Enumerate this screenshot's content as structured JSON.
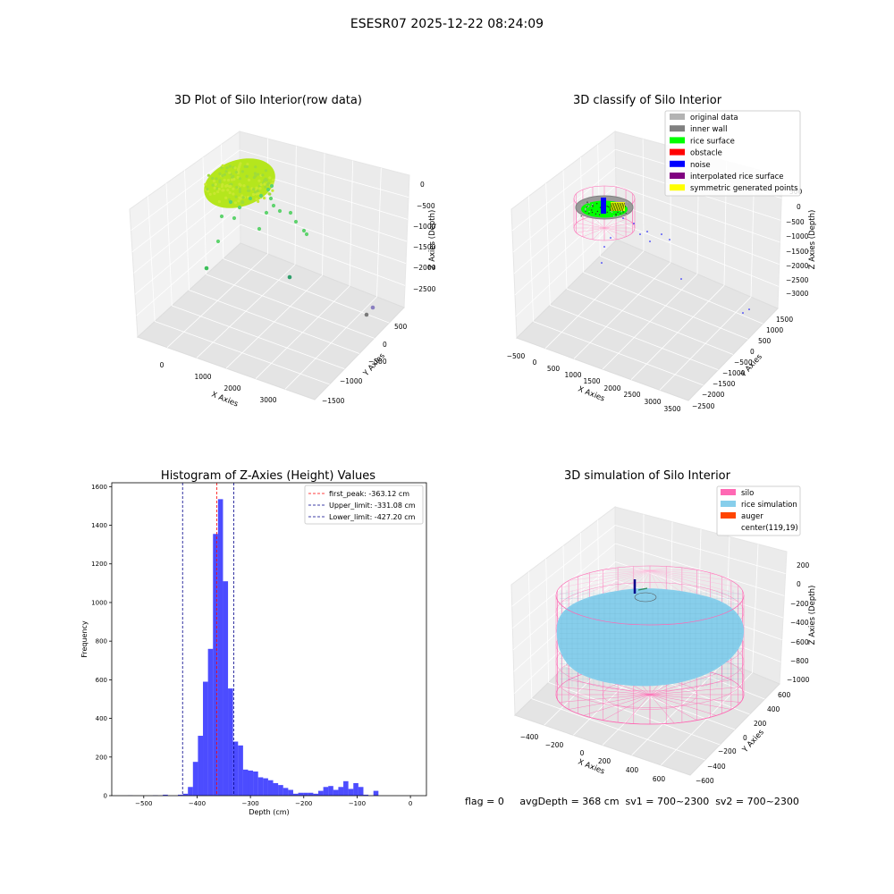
{
  "figure": {
    "suptitle": "ESESR07 2025-12-22 08:24:09"
  },
  "panel1": {
    "title": "3D Plot of Silo Interior(row data)",
    "xlabel": "X Axies",
    "ylabel": "Y Axies",
    "zlabel": "Z Axies (Depth)",
    "xticks": [
      "0",
      "1000",
      "2000",
      "3000"
    ],
    "yticks": [
      "500",
      "0",
      "−500",
      "−1000",
      "−1500"
    ],
    "zticks": [
      "0",
      "−500",
      "−1000",
      "−1500",
      "−2000",
      "−2500"
    ],
    "colors": {
      "surface": "#b5e61d",
      "points": "#5fd36e",
      "deep": "#2e9e6b",
      "far": "#7a7a7a"
    }
  },
  "panel2": {
    "title": "3D classify of Silo Interior",
    "xlabel": "X Axies",
    "ylabel": "Y Axies",
    "zlabel": "Z Axies (Depth)",
    "xticks": [
      "−500",
      "0",
      "500",
      "1000",
      "1500",
      "2000",
      "2500",
      "3000",
      "3500"
    ],
    "yticks": [
      "1500",
      "1000",
      "500",
      "0",
      "−500",
      "−1000",
      "−1500",
      "−2000",
      "−2500"
    ],
    "zticks": [
      "500",
      "0",
      "−500",
      "−1000",
      "−1500",
      "−2000",
      "−2500",
      "−3000"
    ],
    "legend": [
      {
        "label": "original data",
        "color": "#b3b3b3"
      },
      {
        "label": "inner wall",
        "color": "#808080"
      },
      {
        "label": "rice surface",
        "color": "#00ff00"
      },
      {
        "label": "obstacle",
        "color": "#ff0000"
      },
      {
        "label": "noise",
        "color": "#0000ff"
      },
      {
        "label": "interpolated rice surface",
        "color": "#800080"
      },
      {
        "label": "symmetric generated points",
        "color": "#ffff00"
      }
    ]
  },
  "panel4": {
    "title": "3D simulation of Silo Interior",
    "xlabel": "X Axies",
    "ylabel": "Y Axies",
    "zlabel": "Z Axies (Depth)",
    "xticks": [
      "−400",
      "−200",
      "0",
      "200",
      "400",
      "600"
    ],
    "yticks": [
      "600",
      "400",
      "200",
      "0",
      "−200",
      "−400",
      "−600"
    ],
    "zticks": [
      "200",
      "0",
      "−200",
      "−400",
      "−600",
      "−800",
      "−1000"
    ],
    "legend": [
      {
        "label": "silo",
        "color": "#ff69b4"
      },
      {
        "label": "rice simulation",
        "color": "#87ceeb"
      },
      {
        "label": "auger",
        "color": "#ff4500"
      },
      {
        "label": "center(119,19)",
        "color": ""
      }
    ],
    "status": "flag = 0     avgDepth = 368 cm  sv1 = 700~2300  sv2 = 700~2300"
  },
  "chart_data": [
    {
      "type": "scatter",
      "title": "3D Plot of Silo Interior(row data)",
      "xlabel": "X Axies",
      "ylabel": "Y Axies",
      "zlabel": "Z Axies (Depth)",
      "xlim": [
        -500,
        3700
      ],
      "ylim": [
        -1500,
        700
      ],
      "zlim": [
        -2800,
        100
      ],
      "grid": true
    },
    {
      "type": "scatter",
      "title": "3D classify of Silo Interior",
      "xlabel": "X Axies",
      "ylabel": "Y Axies",
      "zlabel": "Z Axies (Depth)",
      "xlim": [
        -500,
        3500
      ],
      "ylim": [
        -2500,
        1500
      ],
      "zlim": [
        -3000,
        500
      ],
      "series": [
        {
          "name": "original data"
        },
        {
          "name": "inner wall"
        },
        {
          "name": "rice surface"
        },
        {
          "name": "obstacle"
        },
        {
          "name": "noise"
        },
        {
          "name": "interpolated rice surface"
        },
        {
          "name": "symmetric generated points"
        }
      ],
      "legend": "top-right",
      "grid": true
    },
    {
      "type": "bar",
      "title": "Histogram of Z-Axies (Height) Values",
      "xlabel": "Depth (cm)",
      "ylabel": "Frequency",
      "xlim": [
        -560,
        30
      ],
      "ylim": [
        0,
        1620
      ],
      "xticks": [
        -500,
        -400,
        -300,
        -200,
        -100,
        0
      ],
      "yticks": [
        0,
        200,
        400,
        600,
        800,
        1000,
        1200,
        1400,
        1600
      ],
      "bin_start": -530,
      "bin_width": 9.4,
      "values": [
        1,
        0,
        0,
        0,
        0,
        2,
        0,
        5,
        0,
        0,
        5,
        10,
        45,
        175,
        310,
        590,
        760,
        1355,
        1535,
        1110,
        555,
        280,
        260,
        135,
        130,
        125,
        95,
        90,
        80,
        65,
        55,
        40,
        30,
        10,
        15,
        15,
        15,
        10,
        25,
        45,
        50,
        30,
        45,
        75,
        35,
        65,
        45,
        5,
        0,
        25
      ],
      "color": "#0000ff",
      "lines": [
        {
          "label": "first_peak: -363.12 cm",
          "x": -363.12,
          "color": "#ff0000"
        },
        {
          "label": "Upper_limit: -331.08 cm",
          "x": -331.08,
          "color": "#00008b"
        },
        {
          "label": "Lower_limit: -427.20 cm",
          "x": -427.2,
          "color": "#00008b"
        }
      ],
      "legend": "top-right"
    },
    {
      "type": "scatter",
      "title": "3D simulation of Silo Interior",
      "xlabel": "X Axies",
      "ylabel": "Y Axies",
      "zlabel": "Z Axies (Depth)",
      "xlim": [
        -500,
        700
      ],
      "ylim": [
        -600,
        700
      ],
      "zlim": [
        -1000,
        300
      ],
      "series": [
        {
          "name": "silo"
        },
        {
          "name": "rice simulation"
        },
        {
          "name": "auger"
        }
      ],
      "center": [
        119,
        19
      ],
      "legend": "top-right",
      "grid": true
    }
  ]
}
